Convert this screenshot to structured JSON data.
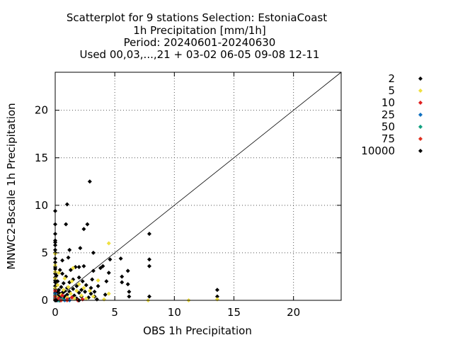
{
  "chart_data": {
    "type": "scatter",
    "title_lines": [
      "Scatterplot for    9 stations Selection: EstoniaCoast",
      "1h Precipitation [mm/1h]",
      "Period: 20240601-20240630",
      "Used 00,03,...,21 + 03-02 06-05 09-08 12-11"
    ],
    "xlabel": "OBS 1h Precipitation",
    "ylabel": "MNWC2-Bscale 1h Precipitation",
    "xlim": [
      0,
      24
    ],
    "ylim": [
      0,
      24
    ],
    "x_ticks": [
      0,
      5,
      10,
      15,
      20
    ],
    "y_ticks": [
      0,
      5,
      10,
      15,
      20
    ],
    "grid": true,
    "diagonal_line": true,
    "legend_position": "right, outside plot",
    "colors": {
      "2": "#000000",
      "5": "#f0e040",
      "10": "#e02020",
      "25": "#1070c0",
      "50": "#10a080",
      "75": "#e03020",
      "10000": "#000000"
    },
    "series": [
      {
        "name": "2",
        "points": [
          [
            0,
            0
          ],
          [
            0,
            0.1
          ],
          [
            0,
            0.2
          ],
          [
            0,
            0.3
          ],
          [
            0,
            0.5
          ],
          [
            0,
            0.8
          ],
          [
            0,
            1.0
          ],
          [
            0,
            1.2
          ],
          [
            0,
            1.5
          ],
          [
            0,
            1.9
          ],
          [
            0,
            2.1
          ],
          [
            0,
            2.4
          ],
          [
            0,
            2.8
          ],
          [
            0,
            3.0
          ],
          [
            0,
            3.3
          ],
          [
            0,
            3.5
          ],
          [
            0,
            4.0
          ],
          [
            0,
            4.4
          ],
          [
            0,
            5.0
          ],
          [
            0,
            5.3
          ],
          [
            0,
            5.8
          ],
          [
            0,
            6.1
          ],
          [
            0,
            6.3
          ],
          [
            0,
            7.0
          ],
          [
            0,
            8.0
          ],
          [
            0,
            9.4
          ],
          [
            0.1,
            0.1
          ],
          [
            0.1,
            0.6
          ],
          [
            0.1,
            1.6
          ],
          [
            0.1,
            2.6
          ],
          [
            0.2,
            0.3
          ],
          [
            0.2,
            0.9
          ],
          [
            0.2,
            2.0
          ],
          [
            0.3,
            0.4
          ],
          [
            0.3,
            1.1
          ],
          [
            0.4,
            0
          ],
          [
            0.4,
            0.7
          ],
          [
            0.4,
            3.2
          ],
          [
            0.5,
            0.2
          ],
          [
            0.5,
            1.4
          ],
          [
            0.6,
            0.8
          ],
          [
            0.6,
            2.8
          ],
          [
            0.6,
            4.2
          ],
          [
            0.7,
            0.1
          ],
          [
            0.7,
            1.8
          ],
          [
            0.8,
            0.4
          ],
          [
            0.8,
            1.0
          ],
          [
            0.9,
            2.5
          ],
          [
            0.9,
            8.0
          ],
          [
            1.0,
            10.1
          ],
          [
            1.0,
            0.6
          ],
          [
            1.0,
            1.3
          ],
          [
            1.1,
            4.5
          ],
          [
            1.1,
            0.2
          ],
          [
            1.2,
            0.9
          ],
          [
            1.2,
            1.9
          ],
          [
            1.2,
            5.3
          ],
          [
            1.3,
            3.2
          ],
          [
            1.4,
            0.3
          ],
          [
            1.5,
            1.2
          ],
          [
            1.5,
            2.2
          ],
          [
            1.6,
            0.5
          ],
          [
            1.7,
            3.5
          ],
          [
            1.8,
            0.2
          ],
          [
            1.8,
            1.5
          ],
          [
            2.0,
            0.8
          ],
          [
            2.0,
            2.4
          ],
          [
            2.0,
            3.5
          ],
          [
            2.1,
            5.5
          ],
          [
            2.2,
            0.4
          ],
          [
            2.2,
            1.1
          ],
          [
            2.3,
            2.0
          ],
          [
            2.4,
            3.6
          ],
          [
            2.4,
            7.5
          ],
          [
            2.5,
            0.9
          ],
          [
            2.6,
            1.6
          ],
          [
            2.7,
            8.0
          ],
          [
            2.8,
            0.3
          ],
          [
            2.9,
            12.5
          ],
          [
            3.0,
            0.7
          ],
          [
            3.0,
            1.3
          ],
          [
            3.1,
            2.2
          ],
          [
            3.2,
            3.1
          ],
          [
            3.2,
            5.0
          ],
          [
            3.3,
            0.4
          ],
          [
            3.3,
            0.9
          ],
          [
            3.5,
            0.1
          ],
          [
            3.6,
            1.5
          ],
          [
            3.8,
            3.4
          ],
          [
            4.0,
            3.6
          ],
          [
            4.2,
            0.6
          ],
          [
            4.3,
            2.0
          ],
          [
            4.5,
            2.9
          ],
          [
            4.6,
            4.3
          ],
          [
            5.5,
            4.4
          ],
          [
            5.6,
            2.5
          ],
          [
            5.6,
            1.9
          ],
          [
            6.1,
            3.1
          ],
          [
            6.1,
            1.7
          ],
          [
            6.2,
            0.9
          ],
          [
            6.2,
            0.4
          ],
          [
            7.9,
            7.0
          ],
          [
            7.9,
            4.3
          ],
          [
            7.9,
            3.6
          ],
          [
            7.9,
            0.4
          ],
          [
            13.6,
            1.1
          ],
          [
            13.6,
            0.4
          ]
        ]
      },
      {
        "name": "5",
        "points": [
          [
            0,
            1.3
          ],
          [
            0,
            2.3
          ],
          [
            0,
            3.0
          ],
          [
            0,
            3.7
          ],
          [
            0,
            4.9
          ],
          [
            0.1,
            0.4
          ],
          [
            0.2,
            1.6
          ],
          [
            0.3,
            2.9
          ],
          [
            0.5,
            0.6
          ],
          [
            0.7,
            1.1
          ],
          [
            0.8,
            2.3
          ],
          [
            1.0,
            0.3
          ],
          [
            1.1,
            1.4
          ],
          [
            1.3,
            0.7
          ],
          [
            1.4,
            2.0
          ],
          [
            1.5,
            3.4
          ],
          [
            1.6,
            0.2
          ],
          [
            1.8,
            1.0
          ],
          [
            2.0,
            1.7
          ],
          [
            2.2,
            0.5
          ],
          [
            2.4,
            1.3
          ],
          [
            2.6,
            0.2
          ],
          [
            2.9,
            1.0
          ],
          [
            3.2,
            0.4
          ],
          [
            3.6,
            2.1
          ],
          [
            4.1,
            0.1
          ],
          [
            4.5,
            6.0
          ],
          [
            4.5,
            0.7
          ],
          [
            7.8,
            0.0
          ],
          [
            11.2,
            0.0
          ],
          [
            13.6,
            0.1
          ]
        ]
      },
      {
        "name": "10",
        "points": [
          [
            0,
            0.6
          ],
          [
            0,
            1.0
          ],
          [
            0.3,
            0.2
          ],
          [
            0.6,
            0.5
          ],
          [
            1.0,
            0.1
          ],
          [
            1.4,
            0.3
          ],
          [
            1.9,
            0.0
          ],
          [
            2.3,
            0.1
          ]
        ]
      },
      {
        "name": "25",
        "points": [
          [
            0,
            0.3
          ],
          [
            0,
            0.7
          ],
          [
            0.2,
            0.0
          ],
          [
            0.5,
            0.1
          ],
          [
            0.8,
            0.0
          ],
          [
            1.2,
            0.0
          ]
        ]
      },
      {
        "name": "50",
        "points": [
          [
            0,
            0.2
          ],
          [
            0,
            0.5
          ],
          [
            0.3,
            0.0
          ],
          [
            0.6,
            0.1
          ]
        ]
      },
      {
        "name": "75",
        "points": [
          [
            0,
            0.1
          ],
          [
            0,
            0.4
          ],
          [
            0.2,
            0.1
          ],
          [
            0.5,
            0.0
          ],
          [
            1.0,
            0.0
          ]
        ]
      },
      {
        "name": "10000",
        "points": [
          [
            0,
            0.0
          ],
          [
            0.1,
            0.0
          ],
          [
            2.0,
            0.0
          ]
        ]
      }
    ]
  }
}
